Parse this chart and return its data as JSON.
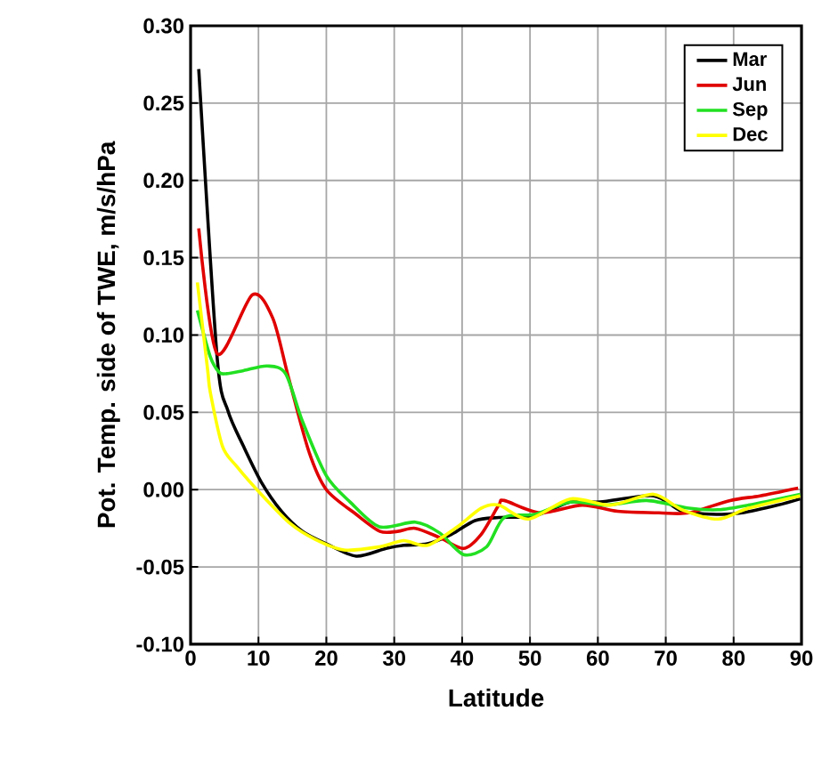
{
  "chart_data": {
    "type": "line",
    "xlabel": "Latitude",
    "ylabel": "Pot. Temp. side of TWE, m/s/hPa",
    "xlim": [
      0,
      90
    ],
    "xticks": [
      0,
      10,
      20,
      30,
      40,
      50,
      60,
      70,
      80,
      90
    ],
    "ylim": [
      -0.1,
      0.3
    ],
    "yticks": [
      {
        "value": -0.1,
        "label": "-0.10"
      },
      {
        "value": -0.05,
        "label": "-0.05"
      },
      {
        "value": 0,
        "label": "0.00"
      },
      {
        "value": 0.05,
        "label": "0.05"
      },
      {
        "value": 0.1,
        "label": "0.10"
      },
      {
        "value": 0.15,
        "label": "0.15"
      },
      {
        "value": 0.2,
        "label": "0.20"
      },
      {
        "value": 0.25,
        "label": "0.25"
      },
      {
        "value": 0.3,
        "label": "0.30"
      }
    ],
    "grid": true,
    "legend": "top right",
    "marker": "none",
    "line_style": "solid",
    "series": [
      {
        "name": "Mar",
        "color": "#000000",
        "x": [
          1.2,
          3.9,
          5.5,
          7.8,
          10.4,
          13.4,
          16.5,
          20,
          24.4,
          28.8,
          31.4,
          34.9,
          38.4,
          41.9,
          45.4,
          50.7,
          55.9,
          60.3,
          68.2,
          72.4,
          77.7,
          81.3,
          86.5,
          89.8
        ],
        "values": [
          0.272,
          0.086,
          0.051,
          0.028,
          0.005,
          -0.014,
          -0.027,
          -0.035,
          -0.043,
          -0.038,
          -0.036,
          -0.035,
          -0.029,
          -0.02,
          -0.018,
          -0.017,
          -0.008,
          -0.008,
          -0.004,
          -0.014,
          -0.016,
          -0.015,
          -0.01,
          -0.006
        ]
      },
      {
        "name": "Jun",
        "color": "#e00000",
        "x": [
          1.2,
          3.9,
          9.1,
          12.1,
          14.4,
          17.4,
          20,
          24.4,
          27.9,
          30.5,
          33.1,
          36.7,
          40.2,
          42.8,
          45.4,
          46.2,
          51.5,
          57.7,
          62.9,
          69,
          73.4,
          79.5,
          83.9,
          89.5
        ],
        "values": [
          0.169,
          0.088,
          0.126,
          0.111,
          0.073,
          0.025,
          0.0,
          -0.016,
          -0.027,
          -0.027,
          -0.025,
          -0.031,
          -0.038,
          -0.029,
          -0.01,
          -0.007,
          -0.015,
          -0.01,
          -0.014,
          -0.015,
          -0.015,
          -0.007,
          -0.004,
          0.001
        ]
      },
      {
        "name": "Sep",
        "color": "#22e022",
        "x": [
          1,
          2.9,
          4.2,
          5.2,
          7.8,
          11.3,
          14,
          16.5,
          20,
          23.5,
          27.8,
          33.1,
          36.7,
          40.2,
          43.6,
          46.2,
          50.7,
          55.9,
          61.2,
          67.2,
          73.4,
          77.7,
          82.2,
          89.8
        ],
        "values": [
          0.116,
          0.086,
          0.076,
          0.075,
          0.077,
          0.08,
          0.075,
          0.044,
          0.009,
          -0.008,
          -0.024,
          -0.021,
          -0.028,
          -0.042,
          -0.037,
          -0.018,
          -0.016,
          -0.008,
          -0.01,
          -0.007,
          -0.012,
          -0.013,
          -0.01,
          -0.003
        ]
      },
      {
        "name": "Dec",
        "color": "#ffff00",
        "x": [
          1,
          2.5,
          2.9,
          4.7,
          6.8,
          10.4,
          14.7,
          18.3,
          22.6,
          27.8,
          31.4,
          34.9,
          39.3,
          42.8,
          45.4,
          49.8,
          55.9,
          61.9,
          68.2,
          72.4,
          77.7,
          82.2,
          89.8
        ],
        "values": [
          0.134,
          0.078,
          0.063,
          0.028,
          0.015,
          -0.003,
          -0.022,
          -0.032,
          -0.039,
          -0.037,
          -0.033,
          -0.036,
          -0.024,
          -0.012,
          -0.01,
          -0.019,
          -0.006,
          -0.01,
          -0.003,
          -0.013,
          -0.019,
          -0.012,
          -0.004
        ]
      }
    ]
  }
}
